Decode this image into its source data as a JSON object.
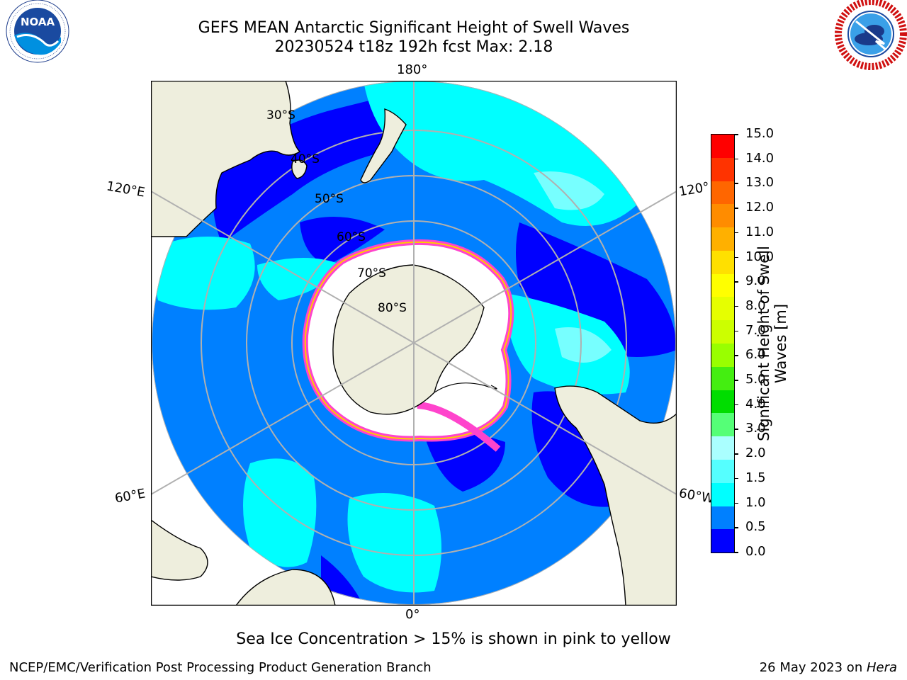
{
  "header": {
    "title_line1": "GEFS MEAN Antarctic Significant Height of Swell Waves",
    "title_line2": "20230524 t18z 192h fcst   Max: 2.18"
  },
  "logos": {
    "noaa_text": "NOAA",
    "noaa_ring_text": "NATIONAL OCEANIC AND ATMOSPHERIC ADMINISTRATION · U.S. DEPARTMENT OF COMMERCE",
    "nws_ring_text": "NATIONAL WEATHER SERVICE"
  },
  "map": {
    "lon_labels": {
      "top": "180°",
      "bottom": "0°",
      "left_upper": "120°E",
      "right_upper": "120°",
      "left_lower": "60°E",
      "right_lower": "60°W"
    },
    "lat_labels": [
      "30°S",
      "40°S",
      "50°S",
      "60°S",
      "70°S",
      "80°S"
    ]
  },
  "colorbar": {
    "label_line1": "Significant Height of Swell",
    "label_line2": "Waves [m]",
    "ticks": [
      "15.0",
      "14.0",
      "13.0",
      "12.0",
      "11.0",
      "10.0",
      "9.0",
      "8.0",
      "7.0",
      "6.0",
      "5.0",
      "4.0",
      "3.0",
      "2.0",
      "1.5",
      "1.0",
      "0.5",
      "0.0"
    ],
    "colors": [
      "#ff0000",
      "#ff3300",
      "#ff6600",
      "#ff8c00",
      "#ffb000",
      "#ffe000",
      "#ffff00",
      "#e6ff00",
      "#ccff00",
      "#99ff00",
      "#44ee11",
      "#00dd00",
      "#55ff77",
      "#aaffff",
      "#55ffff",
      "#00ffff",
      "#0080ff",
      "#0000ff"
    ]
  },
  "colors": {
    "land": "#eeeedd",
    "ocean_blue": "#0080ff",
    "ocean_dark": "#0000ff",
    "swell_cyan": "#00ffff",
    "ice_pink": "#ff44cc",
    "grid": "#b0b0b0"
  },
  "footer": {
    "sea_ice_note": "Sea Ice Concentration > 15% is shown in pink to yellow",
    "branch": "NCEP/EMC/Verification Post Processing Product Generation Branch",
    "date": "26 May 2023 on ",
    "machine": "Hera"
  }
}
